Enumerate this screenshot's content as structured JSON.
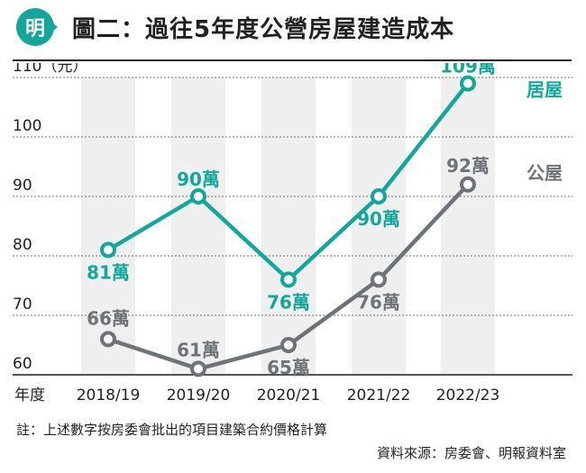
{
  "header": {
    "logo_text": "明",
    "title": "圖二：過往5年度公營房屋建造成本"
  },
  "colors": {
    "accent": "#12a79b",
    "gray": "#6d7378",
    "band": "#efefef"
  },
  "chart_data": {
    "type": "line",
    "title": "圖二：過往5年度公營房屋建造成本",
    "xlabel": "年度",
    "ylabel": "(元)",
    "ytick_top_label": "110（元）",
    "categories": [
      "2018/19",
      "2019/20",
      "2020/21",
      "2021/22",
      "2022/23"
    ],
    "yticks": [
      60,
      70,
      80,
      90,
      100,
      110
    ],
    "ylim": [
      59,
      111
    ],
    "grid": true,
    "series": [
      {
        "name": "居屋",
        "values": [
          81,
          90,
          76,
          90,
          109
        ],
        "data_labels": [
          "81萬",
          "90萬",
          "76萬",
          "90萬",
          "109萬"
        ],
        "color": "#12a79b"
      },
      {
        "name": "公屋",
        "values": [
          66,
          61,
          65,
          76,
          92
        ],
        "data_labels": [
          "66萬",
          "61萬",
          "65萬",
          "76萬",
          "92萬"
        ],
        "color": "#6d7378"
      }
    ]
  },
  "footer": {
    "note": "註：上述數字按房委會批出的項目建築合約價格計算",
    "source": "資料來源：房委會、明報資料室"
  }
}
